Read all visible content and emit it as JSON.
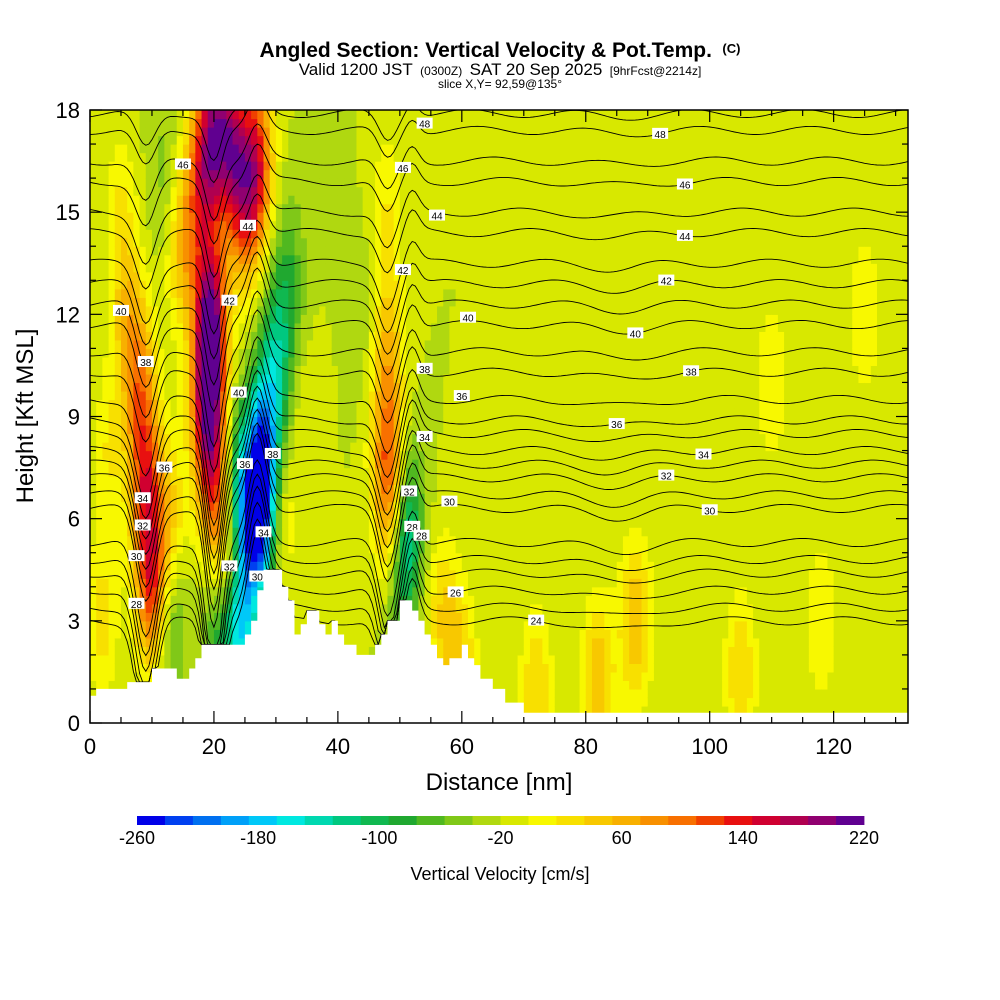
{
  "chart_data": {
    "type": "heatmap",
    "title": "Angled Section: Vertical Velocity & Pot.Temp.",
    "title_mark": "(C)",
    "subtitle_valid": "Valid 1200 JST",
    "subtitle_utc": "(0300Z)",
    "subtitle_date": "SAT 20 Sep 2025",
    "subtitle_fcst": "[9hrFcst@2214z]",
    "slice_label": "slice X,Y= 92,59@135°",
    "xlabel": "Distance [nm]",
    "ylabel": "Height [Kft MSL]",
    "xlim": [
      0,
      132
    ],
    "ylim": [
      0,
      18
    ],
    "xticks": [
      0,
      20,
      40,
      60,
      80,
      100,
      120
    ],
    "yticks": [
      0,
      3,
      6,
      9,
      12,
      15,
      18
    ],
    "colorbar": {
      "label": "Vertical Velocity [cm/s]",
      "min": -260,
      "max": 220,
      "step": 20,
      "tick_values": [
        -260,
        -180,
        -100,
        -20,
        60,
        140,
        220
      ],
      "colors": [
        "#0000e8",
        "#0040f0",
        "#0070f0",
        "#00a0f8",
        "#00c8f8",
        "#00e8e0",
        "#00d8b0",
        "#00c880",
        "#10b850",
        "#20a830",
        "#50b820",
        "#80c818",
        "#b0d810",
        "#d8e800",
        "#f8f800",
        "#f8e000",
        "#f8c800",
        "#f8b000",
        "#f89000",
        "#f87000",
        "#f04000",
        "#e81010",
        "#d00030",
        "#b00050",
        "#900070",
        "#600090"
      ]
    },
    "velocity_field": {
      "background": 0,
      "cells": [
        {
          "x": 9,
          "z": 7,
          "w": 140
        },
        {
          "x": 8,
          "z": 10,
          "w": 100
        },
        {
          "x": 10,
          "z": 4,
          "w": 150
        },
        {
          "x": 6,
          "z": 12,
          "w": 60
        },
        {
          "x": 3,
          "z": 8,
          "w": 40
        },
        {
          "x": 13,
          "z": 3,
          "w": -60
        },
        {
          "x": 13,
          "z": 6,
          "w": 60
        },
        {
          "x": 15,
          "z": 14,
          "w": 80
        },
        {
          "x": 18,
          "z": 16,
          "w": 120
        },
        {
          "x": 20,
          "z": 17.5,
          "w": 160
        },
        {
          "x": 23,
          "z": 17,
          "w": 160
        },
        {
          "x": 27,
          "z": 16.5,
          "w": 150
        },
        {
          "x": 25,
          "z": 15,
          "w": 110
        },
        {
          "x": 19.5,
          "z": 12,
          "w": 210
        },
        {
          "x": 19,
          "z": 9.5,
          "w": 200
        },
        {
          "x": 20,
          "z": 7,
          "w": 120
        },
        {
          "x": 22,
          "z": 4,
          "w": 140
        },
        {
          "x": 24,
          "z": 3,
          "w": -180
        },
        {
          "x": 21,
          "z": 3,
          "w": -120
        },
        {
          "x": 24,
          "z": 7,
          "w": -100
        },
        {
          "x": 27,
          "z": 6,
          "w": -240
        },
        {
          "x": 28,
          "z": 8,
          "w": -160
        },
        {
          "x": 30,
          "z": 10.5,
          "w": -100
        },
        {
          "x": 32,
          "z": 13,
          "w": -60
        },
        {
          "x": 31,
          "z": 6,
          "w": 40
        },
        {
          "x": 35,
          "z": 9,
          "w": 20
        },
        {
          "x": 12,
          "z": 16,
          "w": -30
        },
        {
          "x": 48,
          "z": 8,
          "w": 100
        },
        {
          "x": 49,
          "z": 6,
          "w": 120
        },
        {
          "x": 48,
          "z": 11,
          "w": 70
        },
        {
          "x": 48,
          "z": 15,
          "w": 40
        },
        {
          "x": 51,
          "z": 6,
          "w": -120
        },
        {
          "x": 50,
          "z": 4.5,
          "w": -80
        },
        {
          "x": 44,
          "z": 12,
          "w": -20
        },
        {
          "x": 38,
          "z": 16,
          "w": -10
        },
        {
          "x": 57,
          "z": 3.2,
          "w": 60
        },
        {
          "x": 60,
          "z": 1.5,
          "w": 60
        },
        {
          "x": 72,
          "z": 1,
          "w": 60
        },
        {
          "x": 82,
          "z": 1.2,
          "w": 80
        },
        {
          "x": 88,
          "z": 3,
          "w": 80
        },
        {
          "x": 105,
          "z": 1.5,
          "w": 60
        },
        {
          "x": 110,
          "z": 10,
          "w": 40
        },
        {
          "x": 125,
          "z": 12,
          "w": 40
        },
        {
          "x": 118,
          "z": 3,
          "w": 40
        },
        {
          "x": 2,
          "z": 3,
          "w": 50
        },
        {
          "x": 5,
          "z": 15,
          "w": 40
        }
      ]
    },
    "terrain_kft": [
      [
        0,
        0.8
      ],
      [
        1,
        0.8
      ],
      [
        1,
        1.0
      ],
      [
        6,
        1.0
      ],
      [
        6,
        1.2
      ],
      [
        10,
        1.2
      ],
      [
        10,
        1.6
      ],
      [
        14,
        1.6
      ],
      [
        14,
        1.3
      ],
      [
        16,
        1.3
      ],
      [
        16,
        1.6
      ],
      [
        17,
        1.6
      ],
      [
        17,
        1.9
      ],
      [
        18,
        1.9
      ],
      [
        18,
        2.3
      ],
      [
        25,
        2.3
      ],
      [
        25,
        2.6
      ],
      [
        26,
        2.6
      ],
      [
        26,
        3.0
      ],
      [
        27,
        3.0
      ],
      [
        27,
        3.9
      ],
      [
        28,
        3.9
      ],
      [
        28,
        4.5
      ],
      [
        31,
        4.5
      ],
      [
        31,
        4.0
      ],
      [
        32,
        4.0
      ],
      [
        32,
        3.6
      ],
      [
        33,
        3.6
      ],
      [
        33,
        2.6
      ],
      [
        34,
        2.6
      ],
      [
        34,
        2.9
      ],
      [
        35,
        2.9
      ],
      [
        35,
        3.3
      ],
      [
        37,
        3.3
      ],
      [
        37,
        2.9
      ],
      [
        38,
        2.9
      ],
      [
        38,
        2.6
      ],
      [
        39,
        2.6
      ],
      [
        39,
        3.0
      ],
      [
        40,
        3.0
      ],
      [
        40,
        2.6
      ],
      [
        41,
        2.6
      ],
      [
        41,
        2.3
      ],
      [
        43,
        2.3
      ],
      [
        43,
        2.0
      ],
      [
        46,
        2.0
      ],
      [
        46,
        2.3
      ],
      [
        47,
        2.3
      ],
      [
        47,
        2.6
      ],
      [
        48,
        2.6
      ],
      [
        48,
        3.0
      ],
      [
        50,
        3.0
      ],
      [
        50,
        3.6
      ],
      [
        52,
        3.6
      ],
      [
        52,
        3.3
      ],
      [
        53,
        3.3
      ],
      [
        53,
        3.0
      ],
      [
        54,
        3.0
      ],
      [
        54,
        2.6
      ],
      [
        55,
        2.6
      ],
      [
        55,
        2.3
      ],
      [
        56,
        2.3
      ],
      [
        56,
        1.9
      ],
      [
        57,
        1.9
      ],
      [
        57,
        1.7
      ],
      [
        58,
        1.7
      ],
      [
        58,
        1.9
      ],
      [
        60,
        1.9
      ],
      [
        60,
        2.3
      ],
      [
        61,
        2.3
      ],
      [
        61,
        1.9
      ],
      [
        62,
        1.9
      ],
      [
        62,
        1.7
      ],
      [
        63,
        1.7
      ],
      [
        63,
        1.3
      ],
      [
        65,
        1.3
      ],
      [
        65,
        1.0
      ],
      [
        67,
        1.0
      ],
      [
        67,
        0.6
      ],
      [
        70,
        0.6
      ],
      [
        70,
        0.3
      ],
      [
        72,
        0.3
      ],
      [
        72,
        0.3
      ],
      [
        132,
        0.3
      ]
    ],
    "theta_contours": [
      {
        "value": 24,
        "baseline": 3.0,
        "label": "24",
        "label_x": 72
      },
      {
        "value": 25,
        "baseline": 3.4,
        "label": "",
        "label_x": 0
      },
      {
        "value": 26,
        "baseline": 3.9,
        "label": "26",
        "label_x": 59
      },
      {
        "value": 27,
        "baseline": 4.4,
        "label": "",
        "label_x": 0
      },
      {
        "value": 28,
        "baseline": 4.8,
        "label": "28",
        "label_x": 52
      },
      {
        "value": 29,
        "baseline": 5.3,
        "label": "",
        "label_x": 0
      },
      {
        "value": 30,
        "baseline": 6.3,
        "label": "30",
        "label_x": 100
      },
      {
        "value": 31,
        "baseline": 6.7,
        "label": "",
        "label_x": 0
      },
      {
        "value": 32,
        "baseline": 7.2,
        "label": "32",
        "label_x": 93
      },
      {
        "value": 33,
        "baseline": 7.6,
        "label": "",
        "label_x": 0
      },
      {
        "value": 34,
        "baseline": 8.0,
        "label": "34",
        "label_x": 99
      },
      {
        "value": 35,
        "baseline": 8.5,
        "label": "",
        "label_x": 0
      },
      {
        "value": 36,
        "baseline": 8.9,
        "label": "36",
        "label_x": 85
      },
      {
        "value": 37,
        "baseline": 9.5,
        "label": "",
        "label_x": 0
      },
      {
        "value": 38,
        "baseline": 10.3,
        "label": "38",
        "label_x": 97
      },
      {
        "value": 39,
        "baseline": 10.9,
        "label": "",
        "label_x": 0
      },
      {
        "value": 40,
        "baseline": 11.7,
        "label": "40",
        "label_x": 88
      },
      {
        "value": 41,
        "baseline": 12.3,
        "label": "",
        "label_x": 0
      },
      {
        "value": 42,
        "baseline": 12.9,
        "label": "42",
        "label_x": 93
      },
      {
        "value": 43,
        "baseline": 13.5,
        "label": "",
        "label_x": 0
      },
      {
        "value": 44,
        "baseline": 14.4,
        "label": "44",
        "label_x": 96
      },
      {
        "value": 45,
        "baseline": 15.0,
        "label": "",
        "label_x": 0
      },
      {
        "value": 46,
        "baseline": 15.9,
        "label": "46",
        "label_x": 96
      },
      {
        "value": 47,
        "baseline": 16.5,
        "label": "",
        "label_x": 0
      },
      {
        "value": 48,
        "baseline": 17.4,
        "label": "48",
        "label_x": 92
      },
      {
        "value": 49,
        "baseline": 17.9,
        "label": "",
        "label_x": 0
      }
    ],
    "extra_contour_labels": [
      {
        "text": "28",
        "x": 7.5,
        "z": 3.5
      },
      {
        "text": "30",
        "x": 7.5,
        "z": 4.9
      },
      {
        "text": "32",
        "x": 8.5,
        "z": 5.8
      },
      {
        "text": "34",
        "x": 8.5,
        "z": 6.6
      },
      {
        "text": "36",
        "x": 12,
        "z": 7.5
      },
      {
        "text": "38",
        "x": 9,
        "z": 10.6
      },
      {
        "text": "40",
        "x": 5,
        "z": 12.1
      },
      {
        "text": "46",
        "x": 15,
        "z": 16.4
      },
      {
        "text": "44",
        "x": 25.5,
        "z": 14.6
      },
      {
        "text": "42",
        "x": 22.5,
        "z": 12.4
      },
      {
        "text": "40",
        "x": 24,
        "z": 9.7
      },
      {
        "text": "36",
        "x": 25,
        "z": 7.6
      },
      {
        "text": "32",
        "x": 22.5,
        "z": 4.6
      },
      {
        "text": "30",
        "x": 27,
        "z": 4.3
      },
      {
        "text": "34",
        "x": 28,
        "z": 5.6
      },
      {
        "text": "38",
        "x": 29.5,
        "z": 7.9
      },
      {
        "text": "48",
        "x": 54,
        "z": 17.6
      },
      {
        "text": "46",
        "x": 50.5,
        "z": 16.3
      },
      {
        "text": "44",
        "x": 56,
        "z": 14.9
      },
      {
        "text": "42",
        "x": 50.5,
        "z": 13.3
      },
      {
        "text": "40",
        "x": 61,
        "z": 11.9
      },
      {
        "text": "38",
        "x": 54,
        "z": 10.4
      },
      {
        "text": "36",
        "x": 60,
        "z": 9.6
      },
      {
        "text": "34",
        "x": 54,
        "z": 8.4
      },
      {
        "text": "32",
        "x": 51.5,
        "z": 6.8
      },
      {
        "text": "30",
        "x": 58,
        "z": 6.5
      },
      {
        "text": "28",
        "x": 53.5,
        "z": 5.5
      }
    ]
  }
}
